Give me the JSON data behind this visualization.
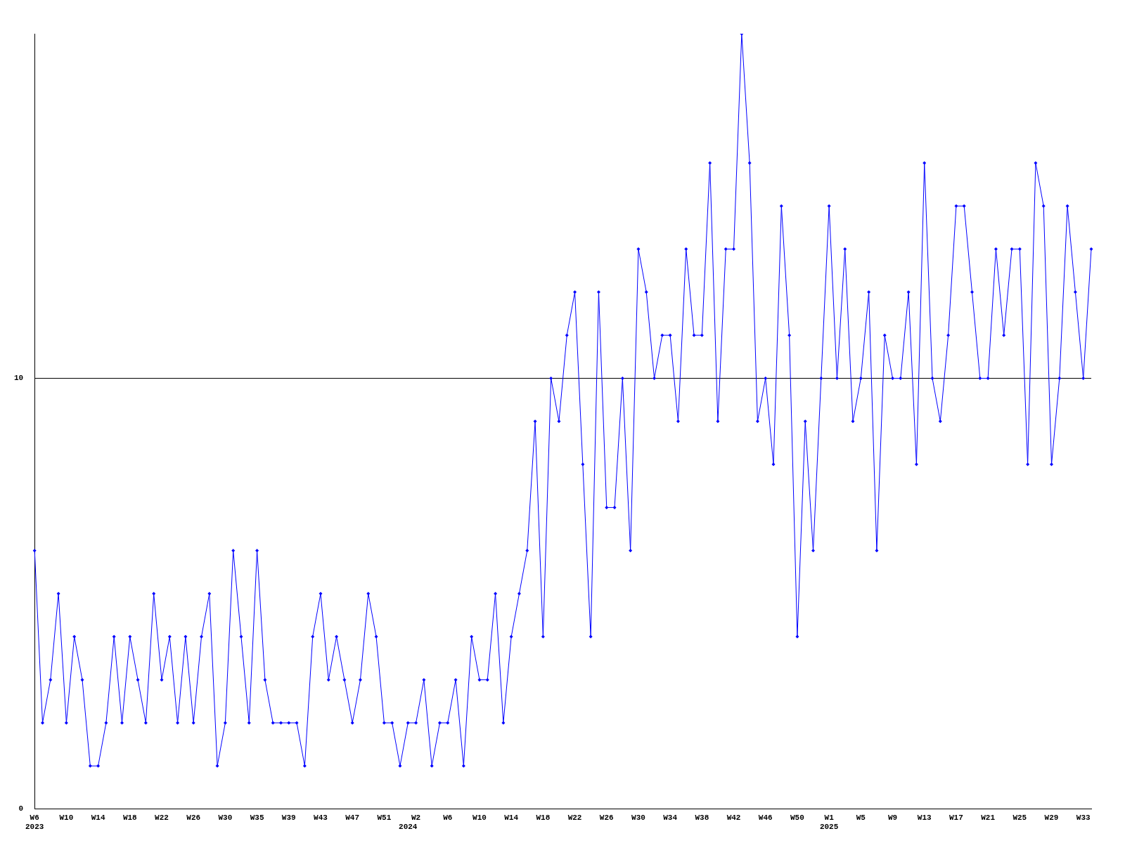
{
  "chart_data": {
    "type": "line",
    "categories": [
      "W6\n2023",
      null,
      null,
      null,
      "W10",
      null,
      null,
      null,
      "W14",
      null,
      null,
      null,
      "W18",
      null,
      null,
      null,
      "W22",
      null,
      null,
      null,
      "W26",
      null,
      null,
      null,
      "W30",
      null,
      null,
      null,
      "W35",
      null,
      null,
      null,
      "W39",
      null,
      null,
      null,
      "W43",
      null,
      null,
      null,
      "W47",
      null,
      null,
      null,
      "W51",
      null,
      null,
      "\n2024",
      "W2",
      null,
      null,
      null,
      "W6",
      null,
      null,
      null,
      "W10",
      null,
      null,
      null,
      "W14",
      null,
      null,
      null,
      "W18",
      null,
      null,
      null,
      "W22",
      null,
      null,
      null,
      "W26",
      null,
      null,
      null,
      "W30",
      null,
      null,
      null,
      "W34",
      null,
      null,
      null,
      "W38",
      null,
      null,
      null,
      "W42",
      null,
      null,
      null,
      "W46",
      null,
      null,
      null,
      "W50",
      null,
      null,
      null,
      "W1\n2025",
      null,
      null,
      null,
      "W5",
      null,
      null,
      null,
      "W9",
      null,
      null,
      null,
      "W13",
      null,
      null,
      null,
      "W17",
      null,
      null,
      null,
      "W21",
      null,
      null,
      null,
      "W25",
      null,
      null,
      null,
      "W29",
      null,
      null,
      null,
      "W33",
      null
    ],
    "series": [
      {
        "color": "#0000ff",
        "values": [
          6,
          2,
          3,
          5,
          2,
          4,
          3,
          1,
          1,
          2,
          4,
          2,
          4,
          3,
          2,
          5,
          3,
          4,
          2,
          4,
          2,
          4,
          5,
          1,
          2,
          6,
          4,
          2,
          6,
          3,
          2,
          2,
          2,
          2,
          1,
          4,
          5,
          3,
          4,
          3,
          2,
          3,
          5,
          4,
          2,
          2,
          1,
          2,
          2,
          3,
          1,
          2,
          2,
          3,
          1,
          4,
          3,
          3,
          5,
          2,
          4,
          5,
          6,
          9,
          4,
          10,
          9,
          11,
          12,
          8,
          4,
          12,
          7,
          7,
          10,
          6,
          13,
          12,
          10,
          11,
          11,
          9,
          13,
          11,
          11,
          15,
          9,
          13,
          13,
          18,
          15,
          9,
          10,
          8,
          14,
          11,
          4,
          9,
          6,
          10,
          14,
          10,
          13,
          9,
          10,
          12,
          6,
          11,
          10,
          10,
          12,
          8,
          15,
          10,
          9,
          11,
          14,
          14,
          12,
          10,
          10,
          13,
          11,
          13,
          13,
          8,
          15,
          14,
          8,
          10,
          14,
          12,
          10,
          13
        ]
      }
    ],
    "ylim": [
      0,
      18
    ],
    "yticks": [
      0,
      10
    ],
    "grid": "y",
    "legend": false,
    "marker": "diamond",
    "line_style": "solid"
  }
}
